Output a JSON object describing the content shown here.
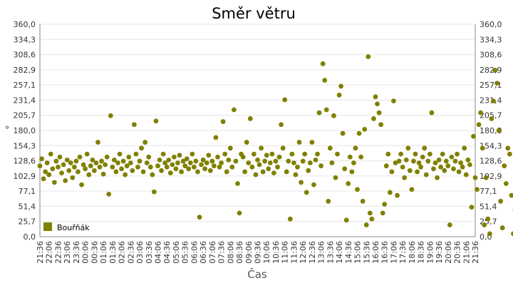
{
  "chart_data": {
    "type": "scatter",
    "title": "Směr větru",
    "xlabel": "Čas",
    "ylabel": "°",
    "ylim": [
      0,
      360
    ],
    "y_ticks": [
      "0,0",
      "25,7",
      "51,4",
      "77,1",
      "102,9",
      "128,6",
      "154,3",
      "180,0",
      "205,7",
      "231,4",
      "257,1",
      "282,9",
      "308,6",
      "334,3",
      "360,0"
    ],
    "y_ticks_right": true,
    "grid": "horizontal",
    "x_ticks": [
      "21:36",
      "22:06",
      "22:36",
      "23:06",
      "23:36",
      "00:06",
      "00:36",
      "01:06",
      "01:36",
      "02:06",
      "02:36",
      "03:06",
      "03:36",
      "04:06",
      "04:36",
      "05:06",
      "05:36",
      "06:06",
      "06:36",
      "07:06",
      "07:36",
      "08:06",
      "08:36",
      "09:06",
      "09:36",
      "10:06",
      "10:36",
      "11:06",
      "11:36",
      "12:06",
      "12:36",
      "13:06",
      "13:36",
      "14:06",
      "14:36",
      "15:06",
      "15:36",
      "16:06",
      "16:36",
      "17:06",
      "17:36",
      "18:06",
      "18:36",
      "19:06",
      "19:36",
      "20:06",
      "20:36",
      "21:06",
      "21:36"
    ],
    "legend": {
      "position": "bottom-left"
    },
    "series": [
      {
        "name": "Bouřňák",
        "color": "#808000",
        "values": [
          [
            0,
            120
          ],
          [
            0.2,
            132
          ],
          [
            0.4,
            98
          ],
          [
            0.6,
            110
          ],
          [
            0.8,
            125
          ],
          [
            1.0,
            105
          ],
          [
            1.2,
            140
          ],
          [
            1.4,
            115
          ],
          [
            1.6,
            92
          ],
          [
            1.8,
            128
          ],
          [
            2.0,
            118
          ],
          [
            2.2,
            135
          ],
          [
            2.4,
            108
          ],
          [
            2.6,
            122
          ],
          [
            2.8,
            95
          ],
          [
            3.0,
            130
          ],
          [
            3.2,
            112
          ],
          [
            3.4,
            125
          ],
          [
            3.6,
            100
          ],
          [
            3.8,
            118
          ],
          [
            4.0,
            128
          ],
          [
            4.2,
            110
          ],
          [
            4.4,
            135
          ],
          [
            4.6,
            88
          ],
          [
            4.8,
            122
          ],
          [
            5.0,
            115
          ],
          [
            5.2,
            140
          ],
          [
            5.4,
            105
          ],
          [
            5.6,
            120
          ],
          [
            5.8,
            130
          ],
          [
            6.0,
            112
          ],
          [
            6.2,
            125
          ],
          [
            6.4,
            160
          ],
          [
            6.6,
            118
          ],
          [
            6.8,
            128
          ],
          [
            7.0,
            106
          ],
          [
            7.2,
            122
          ],
          [
            7.4,
            135
          ],
          [
            7.6,
            72
          ],
          [
            7.8,
            205
          ],
          [
            8.0,
            118
          ],
          [
            8.2,
            130
          ],
          [
            8.4,
            110
          ],
          [
            8.6,
            125
          ],
          [
            8.8,
            140
          ],
          [
            9.0,
            115
          ],
          [
            9.2,
            128
          ],
          [
            9.4,
            105
          ],
          [
            9.6,
            120
          ],
          [
            9.8,
            135
          ],
          [
            10.0,
            125
          ],
          [
            10.2,
            112
          ],
          [
            10.4,
            190
          ],
          [
            10.6,
            140
          ],
          [
            10.8,
            118
          ],
          [
            11.0,
            128
          ],
          [
            11.2,
            150
          ],
          [
            11.4,
            110
          ],
          [
            11.6,
            160
          ],
          [
            11.8,
            125
          ],
          [
            12.0,
            135
          ],
          [
            12.2,
            118
          ],
          [
            12.4,
            105
          ],
          [
            12.6,
            76
          ],
          [
            12.8,
            196
          ],
          [
            13.0,
            120
          ],
          [
            13.2,
            130
          ],
          [
            13.4,
            112
          ],
          [
            13.6,
            140
          ],
          [
            13.8,
            125
          ],
          [
            14.0,
            118
          ],
          [
            14.2,
            130
          ],
          [
            14.4,
            108
          ],
          [
            14.6,
            122
          ],
          [
            14.8,
            135
          ],
          [
            15.0,
            115
          ],
          [
            15.2,
            125
          ],
          [
            15.4,
            138
          ],
          [
            15.6,
            110
          ],
          [
            15.8,
            128
          ],
          [
            16.0,
            120
          ],
          [
            16.2,
            132
          ],
          [
            16.4,
            115
          ],
          [
            16.6,
            125
          ],
          [
            16.8,
            140
          ],
          [
            17.0,
            118
          ],
          [
            17.2,
            128
          ],
          [
            17.4,
            110
          ],
          [
            17.6,
            33
          ],
          [
            17.8,
            122
          ],
          [
            18.0,
            130
          ],
          [
            18.2,
            115
          ],
          [
            18.4,
            125
          ],
          [
            18.6,
            138
          ],
          [
            18.8,
            112
          ],
          [
            19.0,
            128
          ],
          [
            19.2,
            120
          ],
          [
            19.4,
            168
          ],
          [
            19.6,
            135
          ],
          [
            19.8,
            118
          ],
          [
            20.0,
            125
          ],
          [
            20.2,
            195
          ],
          [
            20.4,
            140
          ],
          [
            20.6,
            110
          ],
          [
            20.8,
            130
          ],
          [
            21.0,
            150
          ],
          [
            21.2,
            118
          ],
          [
            21.4,
            215
          ],
          [
            21.6,
            128
          ],
          [
            21.8,
            90
          ],
          [
            22.0,
            40
          ],
          [
            22.2,
            140
          ],
          [
            22.4,
            135
          ],
          [
            22.6,
            110
          ],
          [
            22.8,
            160
          ],
          [
            23.0,
            125
          ],
          [
            23.2,
            200
          ],
          [
            23.4,
            118
          ],
          [
            23.6,
            140
          ],
          [
            23.8,
            105
          ],
          [
            24.0,
            130
          ],
          [
            24.2,
            122
          ],
          [
            24.4,
            150
          ],
          [
            24.6,
            110
          ],
          [
            24.8,
            128
          ],
          [
            25.0,
            138
          ],
          [
            25.2,
            115
          ],
          [
            25.4,
            125
          ],
          [
            25.6,
            140
          ],
          [
            25.8,
            108
          ],
          [
            26.0,
            128
          ],
          [
            26.2,
            118
          ],
          [
            26.4,
            135
          ],
          [
            26.6,
            190
          ],
          [
            26.8,
            150
          ],
          [
            27.0,
            232
          ],
          [
            27.2,
            110
          ],
          [
            27.4,
            128
          ],
          [
            27.6,
            30
          ],
          [
            27.8,
            140
          ],
          [
            28.0,
            125
          ],
          [
            28.2,
            105
          ],
          [
            28.4,
            118
          ],
          [
            28.6,
            160
          ],
          [
            28.8,
            92
          ],
          [
            29.0,
            128
          ],
          [
            29.2,
            140
          ],
          [
            29.4,
            75
          ],
          [
            29.6,
            112
          ],
          [
            29.8,
            125
          ],
          [
            30.0,
            160
          ],
          [
            30.2,
            88
          ],
          [
            30.4,
            130
          ],
          [
            30.6,
            140
          ],
          [
            30.8,
            210
          ],
          [
            31.0,
            120
          ],
          [
            31.2,
            293
          ],
          [
            31.4,
            265
          ],
          [
            31.6,
            215
          ],
          [
            31.8,
            60
          ],
          [
            32.0,
            150
          ],
          [
            32.2,
            125
          ],
          [
            32.4,
            205
          ],
          [
            32.6,
            100
          ],
          [
            32.8,
            140
          ],
          [
            33.0,
            240
          ],
          [
            33.2,
            255
          ],
          [
            33.4,
            175
          ],
          [
            33.6,
            115
          ],
          [
            33.8,
            28
          ],
          [
            34.0,
            90
          ],
          [
            34.2,
            135
          ],
          [
            34.4,
            110
          ],
          [
            34.6,
            125
          ],
          [
            34.8,
            150
          ],
          [
            35.0,
            80
          ],
          [
            35.2,
            175
          ],
          [
            35.4,
            135
          ],
          [
            35.6,
            60
          ],
          [
            35.8,
            182
          ],
          [
            36.0,
            20
          ],
          [
            36.2,
            305
          ],
          [
            36.4,
            40
          ],
          [
            36.6,
            30
          ],
          [
            36.8,
            200
          ],
          [
            37.0,
            237
          ],
          [
            37.2,
            225
          ],
          [
            37.4,
            210
          ],
          [
            37.6,
            190
          ],
          [
            37.8,
            40
          ],
          [
            38.0,
            55
          ],
          [
            38.2,
            120
          ],
          [
            38.4,
            140
          ],
          [
            38.6,
            75
          ],
          [
            38.8,
            110
          ],
          [
            39.0,
            230
          ],
          [
            39.2,
            125
          ],
          [
            39.4,
            70
          ],
          [
            39.6,
            128
          ],
          [
            39.8,
            140
          ],
          [
            40.0,
            118
          ],
          [
            40.2,
            100
          ],
          [
            40.4,
            130
          ],
          [
            40.6,
            150
          ],
          [
            40.8,
            112
          ],
          [
            41.0,
            80
          ],
          [
            41.2,
            128
          ],
          [
            41.4,
            140
          ],
          [
            41.6,
            110
          ],
          [
            41.8,
            125
          ],
          [
            42.0,
            118
          ],
          [
            42.2,
            135
          ],
          [
            42.4,
            150
          ],
          [
            42.6,
            105
          ],
          [
            42.8,
            128
          ],
          [
            43.0,
            140
          ],
          [
            43.2,
            210
          ],
          [
            43.4,
            115
          ],
          [
            43.6,
            125
          ],
          [
            43.8,
            100
          ],
          [
            44.0,
            130
          ],
          [
            44.2,
            118
          ],
          [
            44.4,
            140
          ],
          [
            44.6,
            112
          ],
          [
            44.8,
            128
          ],
          [
            45.0,
            120
          ],
          [
            45.2,
            20
          ],
          [
            45.4,
            135
          ],
          [
            45.6,
            115
          ],
          [
            45.8,
            128
          ],
          [
            46.0,
            140
          ],
          [
            46.2,
            110
          ],
          [
            46.4,
            125
          ],
          [
            46.6,
            118
          ],
          [
            46.8,
            150
          ],
          [
            47.0,
            105
          ],
          [
            47.2,
            130
          ],
          [
            47.4,
            122
          ],
          [
            47.6,
            50
          ],
          [
            47.8,
            170
          ],
          [
            48.0,
            100
          ],
          [
            48.2,
            80
          ],
          [
            48.4,
            190
          ],
          [
            48.6,
            210
          ],
          [
            48.8,
            150
          ],
          [
            49.0,
            20
          ],
          [
            49.2,
            100
          ],
          [
            49.4,
            30
          ],
          [
            49.6,
            5
          ],
          [
            49.8,
            200
          ],
          [
            50.0,
            230
          ],
          [
            50.2,
            282
          ],
          [
            50.4,
            260
          ],
          [
            50.6,
            180
          ],
          [
            50.8,
            60
          ],
          [
            51.0,
            15
          ],
          [
            51.2,
            120
          ],
          [
            51.4,
            90
          ],
          [
            51.6,
            150
          ],
          [
            51.8,
            140
          ],
          [
            52.0,
            70
          ],
          [
            52.2,
            5
          ],
          [
            52.4,
            45
          ],
          [
            52.6,
            30
          ],
          [
            52.8,
            60
          ],
          [
            53.0,
            100
          ],
          [
            53.2,
            140
          ],
          [
            53.4,
            190
          ],
          [
            53.6,
            65
          ],
          [
            53.8,
            150
          ],
          [
            54.0,
            120
          ],
          [
            54.2,
            128
          ],
          [
            54.4,
            175
          ],
          [
            54.6,
            128
          ],
          [
            55.0,
            5
          ]
        ]
      }
    ]
  }
}
